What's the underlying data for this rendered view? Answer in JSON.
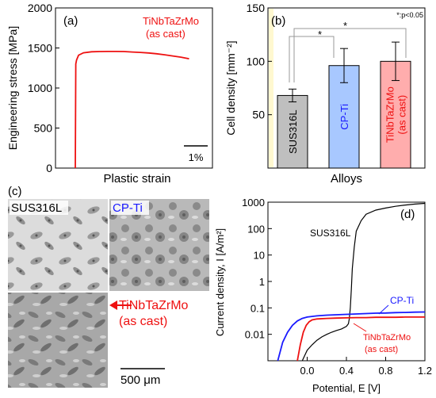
{
  "chart_data": [
    {
      "panel": "(a)",
      "type": "line",
      "ylabel": "Engineering stress [MPa]",
      "xlabel": "Plastic strain",
      "ylim": [
        0,
        2000
      ],
      "yticks": [
        0,
        500,
        1000,
        1500,
        2000
      ],
      "grid": false,
      "annotation": [
        "TiNbTaZrMo",
        "(as cast)"
      ],
      "scale_bar": "1%",
      "series": [
        {
          "name": "TiNbTaZrMo (as cast)",
          "color": "#ee1111",
          "strain_percent": [
            0,
            0.03,
            0.08,
            0.2,
            0.5,
            1.0,
            1.5,
            2.0,
            2.5,
            3.0,
            3.5,
            4.0,
            4.5,
            5.0,
            5.5,
            6.0,
            6.5,
            7.0
          ],
          "stress_mpa": [
            0,
            1300,
            1350,
            1410,
            1440,
            1452,
            1455,
            1456,
            1456,
            1455,
            1450,
            1445,
            1438,
            1428,
            1415,
            1400,
            1385,
            1365
          ]
        }
      ]
    },
    {
      "panel": "(b)",
      "type": "bar",
      "ylabel": "Cell density [mm⁻²]",
      "xlabel": "Alloys",
      "ylim": [
        0,
        150
      ],
      "yticks": [
        50,
        100,
        150
      ],
      "categories": [
        "SUS316L",
        "CP-Ti",
        "TiNbTaZrMo (as cast)"
      ],
      "category_labels": [
        [
          "SUS316L"
        ],
        [
          "CP-Ti"
        ],
        [
          "TiNbTaZrMo",
          "(as cast)"
        ]
      ],
      "values": [
        68,
        96,
        100
      ],
      "errors": [
        6,
        16,
        18
      ],
      "bar_colors": [
        "#bfbfbf",
        "#a8c8ff",
        "#ffadad"
      ],
      "label_colors": [
        "#000000",
        "#1a1aff",
        "#ee1111"
      ],
      "significance": {
        "brackets": [
          "*",
          "*"
        ],
        "note": "*:p<0.05"
      }
    },
    {
      "panel": "(c)",
      "type": "image_panel",
      "labels": [
        "SUS316L",
        "CP-Ti",
        "TiNbTaZrMo",
        "(as cast)"
      ],
      "label_colors": [
        "#000000",
        "#1a1aff",
        "#ee1111",
        "#ee1111"
      ],
      "scale_bar": "500 μm"
    },
    {
      "panel": "(d)",
      "type": "line",
      "ylabel": "Current density, I [A/m²]",
      "xlabel": "Potential, E [V]",
      "yscale": "log",
      "ylim": [
        0.001,
        1000
      ],
      "yticks": [
        "1000",
        "100",
        "10",
        "1",
        "0.1",
        "0.01"
      ],
      "xlim": [
        -0.4,
        1.2
      ],
      "xticks": [
        "0.0",
        "0.4",
        "0.8",
        "1.2"
      ],
      "series": [
        {
          "name": "SUS316L",
          "color": "#000000",
          "potential_v": [
            -0.05,
            0.0,
            0.05,
            0.1,
            0.15,
            0.2,
            0.25,
            0.3,
            0.35,
            0.4,
            0.42,
            0.43,
            0.44,
            0.45,
            0.46,
            0.48,
            0.5,
            0.55,
            0.6,
            0.7,
            0.8,
            0.9,
            1.0,
            1.1,
            1.2
          ],
          "current_a_m2": [
            0.001,
            0.0025,
            0.004,
            0.006,
            0.008,
            0.01,
            0.012,
            0.014,
            0.016,
            0.02,
            0.025,
            0.04,
            0.1,
            0.5,
            3,
            20,
            80,
            200,
            350,
            500,
            600,
            700,
            780,
            850,
            900
          ]
        },
        {
          "name": "CP-Ti",
          "color": "#1a1aff",
          "potential_v": [
            -0.3,
            -0.25,
            -0.2,
            -0.15,
            -0.1,
            -0.05,
            0.0,
            0.1,
            0.2,
            0.3,
            0.4,
            0.5,
            0.6,
            0.7,
            0.8,
            0.9,
            1.0,
            1.1,
            1.2
          ],
          "current_a_m2": [
            0.001,
            0.005,
            0.012,
            0.022,
            0.032,
            0.04,
            0.045,
            0.05,
            0.053,
            0.055,
            0.057,
            0.059,
            0.061,
            0.063,
            0.064,
            0.066,
            0.067,
            0.069,
            0.07
          ]
        },
        {
          "name": "TiNbTaZrMo (as cast)",
          "color": "#ee1111",
          "potential_v": [
            -0.1,
            -0.07,
            -0.04,
            -0.01,
            0.02,
            0.05,
            0.1,
            0.2,
            0.3,
            0.4,
            0.5,
            0.6,
            0.7,
            0.8,
            0.9,
            1.0,
            1.1,
            1.2
          ],
          "current_a_m2": [
            0.001,
            0.004,
            0.012,
            0.022,
            0.03,
            0.035,
            0.038,
            0.04,
            0.041,
            0.042,
            0.043,
            0.043,
            0.044,
            0.044,
            0.044,
            0.045,
            0.045,
            0.045
          ]
        }
      ],
      "labels": {
        "sus": "SUS316L",
        "cpti": "CP-Ti",
        "tin": "TiNbTaZrMo",
        "tin2": "(as cast)"
      }
    }
  ]
}
